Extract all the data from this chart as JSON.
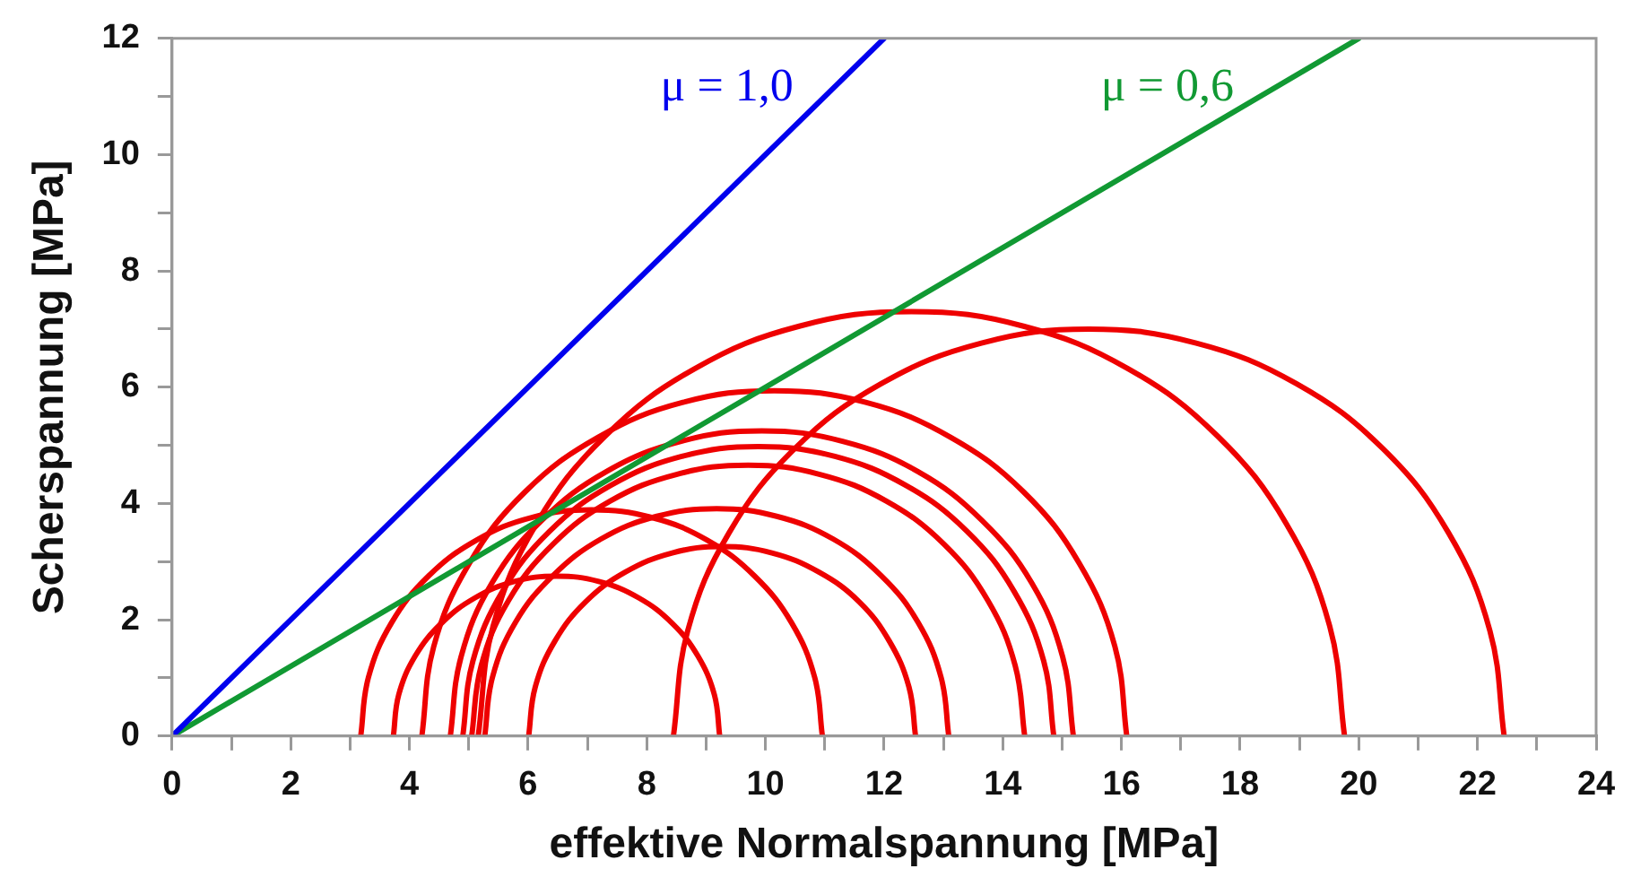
{
  "chart_data": {
    "type": "line",
    "xlabel": "effektive Normalspannung [MPa]",
    "ylabel": "Scherspannung [MPa]",
    "xlim": [
      0,
      24
    ],
    "ylim": [
      0,
      12
    ],
    "xticks": [
      0,
      {
        "value": 1,
        "label": null
      },
      2,
      {
        "value": 3,
        "label": null
      },
      4,
      {
        "value": 5,
        "label": null
      },
      6,
      {
        "value": 7,
        "label": null
      },
      8,
      {
        "value": 9,
        "label": null
      },
      10,
      {
        "value": 11,
        "label": null
      },
      12,
      {
        "value": 13,
        "label": null
      },
      14,
      {
        "value": 15,
        "label": null
      },
      16,
      {
        "value": 17,
        "label": null
      },
      18,
      {
        "value": 19,
        "label": null
      },
      20,
      {
        "value": 21,
        "label": null
      },
      22,
      {
        "value": 23,
        "label": null
      },
      24
    ],
    "yticks": [
      0,
      {
        "value": 1,
        "label": null
      },
      2,
      {
        "value": 3,
        "label": null
      },
      4,
      {
        "value": 5,
        "label": null
      },
      6,
      {
        "value": 7,
        "label": null
      },
      8,
      {
        "value": 9,
        "label": null
      },
      10,
      {
        "value": 11,
        "label": null
      },
      12
    ],
    "grid": false,
    "legend": false,
    "marker": "none",
    "line_style": "solid",
    "series": [
      {
        "name": "μ = 1,0",
        "color": "#0000ee",
        "x": [
          0,
          12
        ],
        "values": [
          0,
          12
        ]
      },
      {
        "name": "μ = 0,6",
        "color": "#119933",
        "x": [
          0,
          20
        ],
        "values": [
          0,
          12
        ]
      },
      {
        "color": "#ee0000",
        "x": [
          3.73,
          3.82,
          4.1,
          4.54,
          5.11,
          5.77,
          6.48,
          7.19,
          7.86,
          8.43,
          8.86,
          9.14,
          9.23
        ],
        "values": [
          0,
          0.71,
          1.38,
          1.94,
          2.38,
          2.66,
          2.75,
          2.66,
          2.38,
          1.94,
          1.38,
          0.71,
          0
        ]
      },
      {
        "color": "#ee0000",
        "x": [
          3.18,
          3.31,
          3.7,
          4.32,
          5.13,
          6.06,
          7.07,
          8.08,
          9.02,
          9.82,
          10.44,
          10.83,
          10.96
        ],
        "values": [
          0,
          1.01,
          1.95,
          2.75,
          3.37,
          3.76,
          3.89,
          3.76,
          3.37,
          2.75,
          1.95,
          1.01,
          0
        ]
      },
      {
        "color": "#ee0000",
        "x": [
          6.01,
          6.12,
          6.45,
          6.97,
          7.64,
          8.43,
          9.27,
          10.11,
          10.9,
          11.58,
          12.09,
          12.42,
          12.53
        ],
        "values": [
          0,
          0.84,
          1.63,
          2.31,
          2.82,
          3.15,
          3.26,
          3.15,
          2.82,
          2.31,
          1.63,
          0.84,
          0
        ]
      },
      {
        "color": "#ee0000",
        "x": [
          5.27,
          5.4,
          5.79,
          6.42,
          7.23,
          8.17,
          9.18,
          10.19,
          11.14,
          11.95,
          12.57,
          12.96,
          13.09
        ],
        "values": [
          0,
          1.01,
          1.96,
          2.76,
          3.39,
          3.78,
          3.91,
          3.78,
          3.39,
          2.76,
          1.96,
          1.01,
          0
        ]
      },
      {
        "color": "#ee0000",
        "x": [
          5.05,
          5.21,
          5.67,
          6.42,
          7.38,
          8.5,
          9.71,
          10.92,
          12.04,
          13.01,
          13.75,
          14.21,
          14.37
        ],
        "values": [
          0,
          1.21,
          2.33,
          3.3,
          4.04,
          4.5,
          4.66,
          4.5,
          4.04,
          3.3,
          2.33,
          1.21,
          0
        ]
      },
      {
        "color": "#ee0000",
        "x": [
          4.9,
          5.07,
          5.57,
          6.36,
          7.39,
          8.59,
          9.88,
          11.17,
          12.37,
          13.4,
          14.19,
          14.69,
          14.86
        ],
        "values": [
          0,
          1.29,
          2.49,
          3.52,
          4.31,
          4.81,
          4.98,
          4.81,
          4.31,
          3.52,
          2.49,
          1.29,
          0
        ]
      },
      {
        "color": "#ee0000",
        "x": [
          4.69,
          4.87,
          5.39,
          6.23,
          7.32,
          8.58,
          9.94,
          11.3,
          12.57,
          13.65,
          14.49,
          15.01,
          15.19
        ],
        "values": [
          0,
          1.36,
          2.63,
          3.71,
          4.55,
          5.07,
          5.25,
          5.07,
          4.55,
          3.71,
          2.63,
          1.36,
          0
        ]
      },
      {
        "color": "#ee0000",
        "x": [
          4.21,
          4.41,
          5.01,
          5.95,
          7.18,
          8.61,
          10.15,
          11.69,
          13.12,
          14.35,
          15.29,
          15.89,
          16.09
        ],
        "values": [
          0,
          1.54,
          2.97,
          4.2,
          5.14,
          5.74,
          5.94,
          5.74,
          5.14,
          4.2,
          2.97,
          1.54,
          0
        ]
      },
      {
        "color": "#ee0000",
        "x": [
          5.16,
          5.41,
          6.14,
          7.3,
          8.81,
          10.57,
          12.46,
          14.35,
          16.11,
          17.62,
          18.78,
          19.51,
          19.76
        ],
        "values": [
          0,
          1.89,
          3.65,
          5.16,
          6.32,
          7.05,
          7.3,
          7.05,
          6.32,
          5.16,
          3.65,
          1.89,
          0
        ]
      },
      {
        "color": "#ee0000",
        "x": [
          8.45,
          8.69,
          9.39,
          10.5,
          11.95,
          13.64,
          15.45,
          17.26,
          18.95,
          20.4,
          21.51,
          22.21,
          22.45
        ],
        "values": [
          0,
          1.81,
          3.5,
          4.95,
          6.06,
          6.76,
          7.0,
          6.76,
          6.06,
          4.95,
          3.5,
          1.81,
          0
        ]
      }
    ]
  }
}
